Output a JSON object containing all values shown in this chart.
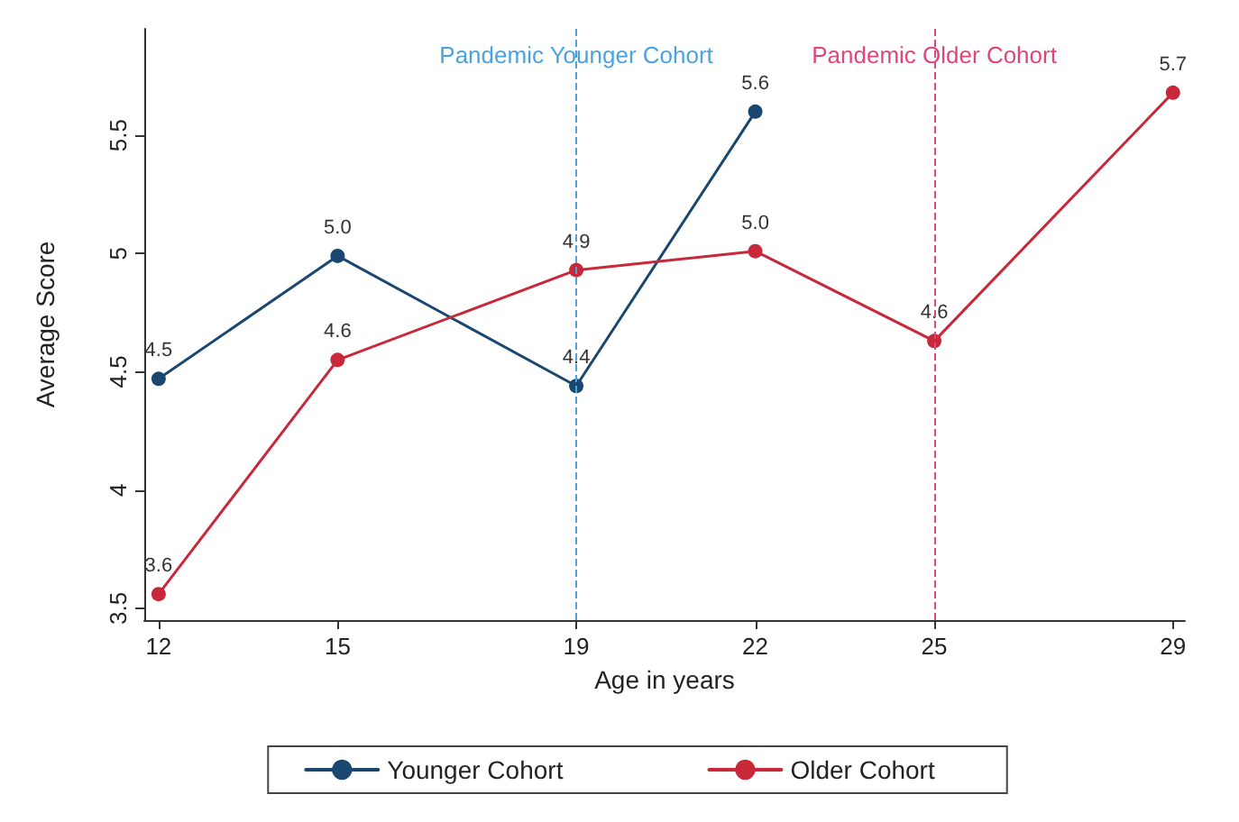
{
  "chart_data": {
    "type": "line",
    "xlabel": "Age in years",
    "ylabel": "Average Score",
    "series": [
      {
        "name": "Younger Cohort",
        "color": "#1a476f",
        "x": [
          12,
          15,
          19,
          22
        ],
        "values": [
          4.47,
          4.99,
          4.44,
          5.6
        ],
        "value_labels": [
          "4.5",
          "5.0",
          "4.4",
          "5.6"
        ]
      },
      {
        "name": "Older Cohort",
        "color": "#c8283a",
        "x": [
          12,
          15,
          19,
          22,
          25,
          29
        ],
        "values": [
          3.56,
          4.55,
          4.93,
          5.01,
          4.63,
          5.68
        ],
        "value_labels": [
          "3.6",
          "4.6",
          "4.9",
          "5.0",
          "4.6",
          "5.7"
        ]
      }
    ],
    "xlim": [
      11.76,
      29.2
    ],
    "xticks": [
      12,
      15,
      19,
      22,
      25,
      29
    ],
    "ylim": [
      3.45,
      5.95
    ],
    "yticks": [
      3.5,
      4,
      4.5,
      5,
      5.5
    ],
    "ref_lines": [
      {
        "axis": "x",
        "value": 19,
        "label": "Pandemic Younger Cohort",
        "color": "#4aa3df",
        "line_style": "dashed"
      },
      {
        "axis": "x",
        "value": 25,
        "label": "Pandemic Older Cohort",
        "color": "#e0457b",
        "line_style": "dashed"
      }
    ],
    "grid": false,
    "legend": "bottom",
    "marker": "circle",
    "line_style": "solid"
  }
}
